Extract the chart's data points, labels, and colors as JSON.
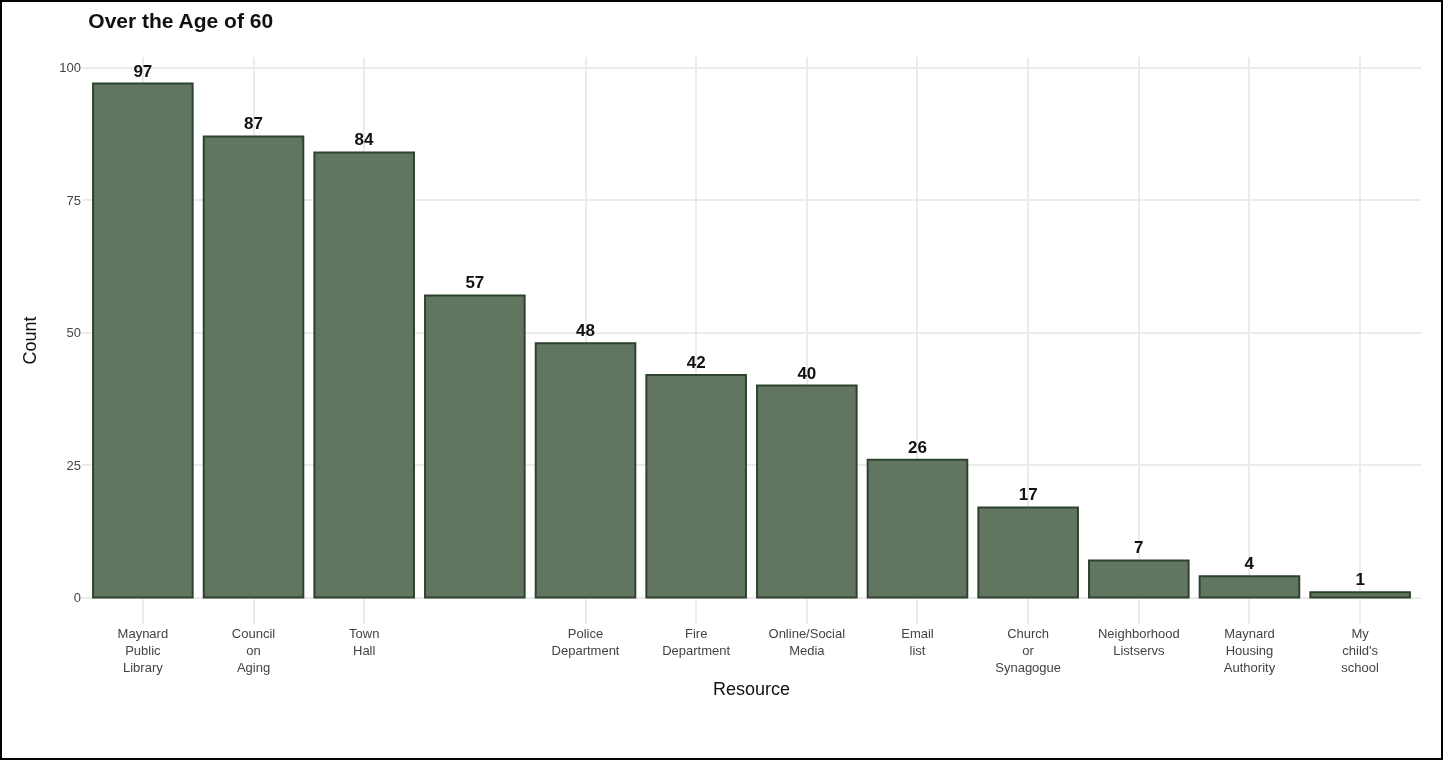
{
  "chart_data": {
    "type": "bar",
    "title": "Over the Age of 60",
    "xlabel": "Resource",
    "ylabel": "Count",
    "categories": [
      "Maynard\nPublic\nLibrary",
      "Council\non\nAging",
      "Town\nHall",
      null,
      "Police\nDepartment",
      "Fire\nDepartment",
      "Online/Social\nMedia",
      "Email\nlist",
      "Church\nor\nSynagogue",
      "Neighborhood\nListservs",
      "Maynard\nHousing\nAuthority",
      "My\nchild's\nschool"
    ],
    "values": [
      97,
      87,
      84,
      57,
      48,
      42,
      40,
      26,
      17,
      7,
      4,
      1
    ],
    "color": "#617561",
    "ylim": [
      -5,
      102
    ],
    "yticks": [
      0,
      25,
      50,
      75,
      100
    ],
    "grid": true,
    "data_labels": true
  }
}
